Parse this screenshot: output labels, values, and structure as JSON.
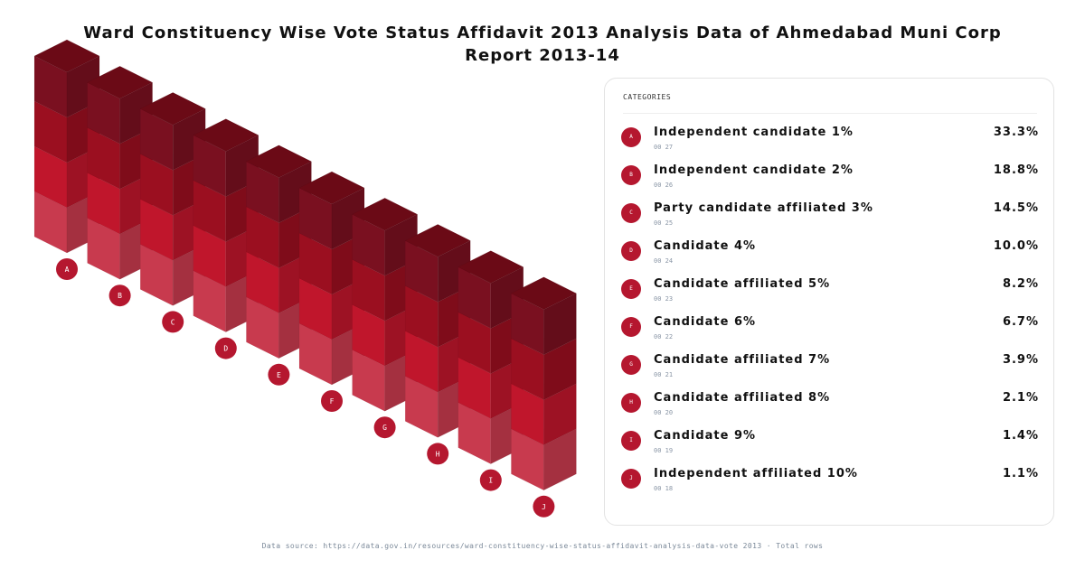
{
  "title": "Ward Constituency Wise Vote Status Affidavit 2013 Analysis Data of Ahmedabad Muni Corp Report 2013-14",
  "table_header": "CATEGORIES",
  "footer": "Data source: https://data.gov.in/resources/ward-constituency-wise-status-affidavit-analysis-data-vote 2013 · Total rows",
  "chart_data": {
    "type": "bar",
    "title": "Ward Constituency Wise Vote Status Affidavit 2013 Analysis Data of Ahmedabad Muni Corp Report 2013-14",
    "categories": [
      "A",
      "B",
      "C",
      "D",
      "E",
      "F",
      "G",
      "H",
      "I",
      "J"
    ],
    "series": [
      {
        "values": [
          1,
          1,
          1,
          1,
          1,
          1,
          1,
          1,
          1,
          1
        ]
      },
      {
        "values": [
          1,
          1,
          1,
          1,
          1,
          1,
          1,
          1,
          1,
          1
        ]
      },
      {
        "values": [
          1,
          1,
          1,
          1,
          1,
          1,
          1,
          1,
          1,
          1
        ]
      },
      {
        "values": [
          1,
          1,
          1,
          1,
          1,
          1,
          1,
          1,
          1,
          1
        ]
      }
    ],
    "colors": [
      "#c83a4e",
      "#c0162c",
      "#9b0f20",
      "#7a1020"
    ]
  },
  "rows": [
    {
      "badge": "A",
      "name": "Independent candidate 1%",
      "code": "00 27",
      "value": "33.3%"
    },
    {
      "badge": "B",
      "name": "Independent candidate 2%",
      "code": "00 26",
      "value": "18.8%"
    },
    {
      "badge": "C",
      "name": "Party candidate affiliated 3%",
      "code": "00 25",
      "value": "14.5%"
    },
    {
      "badge": "D",
      "name": "Candidate 4%",
      "code": "00 24",
      "value": "10.0%"
    },
    {
      "badge": "E",
      "name": "Candidate affiliated 5%",
      "code": "00 23",
      "value": "8.2%"
    },
    {
      "badge": "F",
      "name": "Candidate 6%",
      "code": "00 22",
      "value": "6.7%"
    },
    {
      "badge": "G",
      "name": "Candidate affiliated 7%",
      "code": "00 21",
      "value": "3.9%"
    },
    {
      "badge": "H",
      "name": "Candidate affiliated 8%",
      "code": "00 20",
      "value": "2.1%"
    },
    {
      "badge": "I",
      "name": "Candidate 9%",
      "code": "00 19",
      "value": "1.4%"
    },
    {
      "badge": "J",
      "name": "Independent affiliated 10%",
      "code": "00 18",
      "value": "1.1%"
    }
  ]
}
